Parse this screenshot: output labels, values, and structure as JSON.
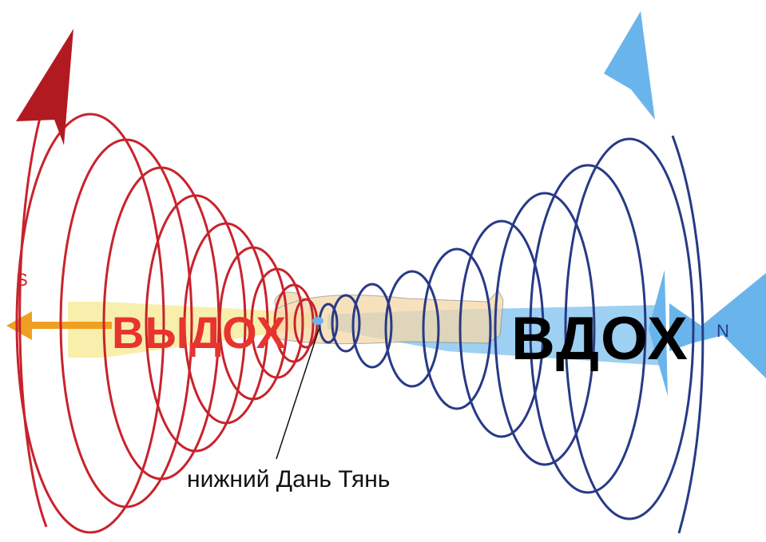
{
  "labels": {
    "south": "S",
    "north": "N",
    "exhale": "ВЫДОХ",
    "inhale": "ВДОХ",
    "center": "нижний Дань Тянь"
  },
  "colors": {
    "exhale_spiral": "#c8232c",
    "inhale_spiral": "#283a86",
    "exhale_arrow": "#f0a020",
    "exhale_band": "#f6ec9c",
    "inhale_band": "#8cc8f0",
    "inhale_arrow": "#6ab4ec",
    "body": "#f5d7a8",
    "center_label": "#111111"
  }
}
